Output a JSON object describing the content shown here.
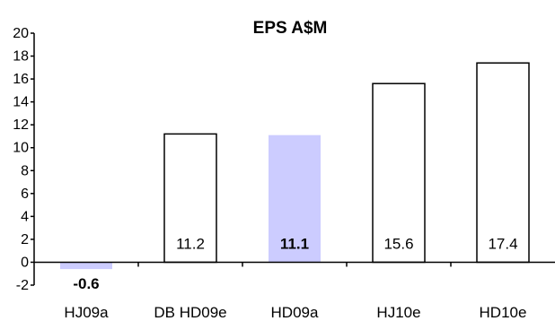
{
  "chart_data": {
    "type": "bar",
    "title": "EPS A$M",
    "xlabel": "",
    "ylabel": "",
    "categories": [
      "HJ09a",
      "DB HD09e",
      "HD09a",
      "HJ10e",
      "HD10e"
    ],
    "values": [
      -0.6,
      11.2,
      11.1,
      15.6,
      17.4
    ],
    "data_labels": [
      "-0.6",
      "11.2",
      "11.1",
      "15.6",
      "17.4"
    ],
    "bold_labels": [
      true,
      false,
      true,
      false,
      false
    ],
    "bar_styles": [
      "filled",
      "outline",
      "filled",
      "outline",
      "outline"
    ],
    "ylim": [
      -2,
      20
    ],
    "yticks": [
      -2,
      0,
      2,
      4,
      6,
      8,
      10,
      12,
      14,
      16,
      18,
      20
    ],
    "ytick_labels": [
      "-2",
      "0",
      "2",
      "4",
      "6",
      "8",
      "10",
      "12",
      "14",
      "16",
      "18",
      "20"
    ],
    "grid": false,
    "legend": "none",
    "colors": {
      "filled": "#ccccff",
      "outline_fill": "#ffffff",
      "outline_stroke": "#000000",
      "axis": "#000000"
    }
  }
}
